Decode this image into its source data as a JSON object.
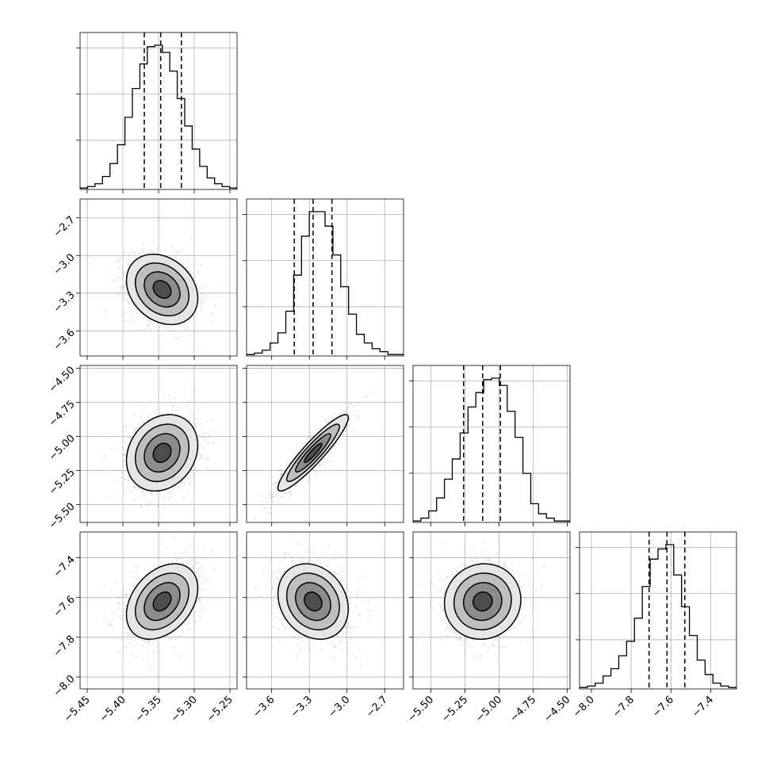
{
  "chart_data": {
    "type": "corner",
    "title": "",
    "parameters": [
      {
        "name": "",
        "range": [
          -5.46,
          -5.24
        ],
        "ticks": [
          -5.45,
          -5.4,
          -5.35,
          -5.3,
          -5.25
        ],
        "tick_labels": [
          "−5.45",
          "−5.40",
          "−5.35",
          "−5.30",
          "−5.25"
        ],
        "mean": -5.345,
        "std": 0.025,
        "quantiles": [
          -5.37,
          -5.347,
          -5.318
        ]
      },
      {
        "name": "",
        "range": [
          -3.8,
          -2.55
        ],
        "ticks": [
          -3.6,
          -3.3,
          -3.0,
          -2.7
        ],
        "tick_labels": [
          "−3.6",
          "−3.3",
          "−3.0",
          "−2.7"
        ],
        "mean": -3.27,
        "std": 0.14,
        "quantiles": [
          -3.42,
          -3.27,
          -3.12
        ]
      },
      {
        "name": "",
        "range": [
          -5.63,
          -4.48
        ],
        "ticks": [
          -5.5,
          -5.25,
          -5.0,
          -4.75,
          -4.5
        ],
        "tick_labels": [
          "−5.50",
          "−5.25",
          "−5.00",
          "−4.75",
          "−4.50"
        ],
        "mean": -5.12,
        "std": 0.14,
        "quantiles": [
          -5.26,
          -5.12,
          -4.99
        ]
      },
      {
        "name": "",
        "range": [
          -8.06,
          -7.27
        ],
        "ticks": [
          -8.0,
          -7.8,
          -7.6,
          -7.4
        ],
        "tick_labels": [
          "−8.0",
          "−7.8",
          "−7.6",
          "−7.4"
        ],
        "mean": -7.62,
        "std": 0.095,
        "quantiles": [
          -7.71,
          -7.62,
          -7.53
        ]
      }
    ],
    "histograms": [
      {
        "parameter": 0,
        "counts": [
          1,
          2,
          4,
          9,
          18,
          31,
          50,
          70,
          87,
          99,
          100,
          95,
          82,
          63,
          44,
          28,
          16,
          8,
          4,
          2,
          1
        ]
      },
      {
        "parameter": 1,
        "counts": [
          1,
          2,
          4,
          9,
          16,
          31,
          56,
          83,
          100,
          100,
          90,
          70,
          48,
          29,
          15,
          9,
          5,
          3,
          1,
          1
        ]
      },
      {
        "parameter": 2,
        "counts": [
          1,
          3,
          8,
          17,
          30,
          44,
          62,
          80,
          90,
          99,
          100,
          95,
          77,
          59,
          34,
          13,
          6,
          3,
          1,
          1
        ]
      },
      {
        "parameter": 3,
        "counts": [
          1,
          2,
          4,
          9,
          14,
          23,
          33,
          49,
          71,
          90,
          97,
          100,
          79,
          57,
          37,
          20,
          10,
          4,
          2,
          1
        ]
      }
    ],
    "pairs": [
      {
        "x": 0,
        "y": 1,
        "correlation": -0.25
      },
      {
        "x": 0,
        "y": 2,
        "correlation": 0.2
      },
      {
        "x": 1,
        "y": 2,
        "correlation": 0.92
      },
      {
        "x": 0,
        "y": 3,
        "correlation": 0.35
      },
      {
        "x": 1,
        "y": 3,
        "correlation": -0.2
      },
      {
        "x": 2,
        "y": 3,
        "correlation": 0.05
      }
    ],
    "contour_levels_sigma": [
      0.5,
      1.0,
      1.5,
      2.0
    ],
    "grid": true,
    "legend": "none",
    "xlabel": "",
    "ylabel": ""
  }
}
